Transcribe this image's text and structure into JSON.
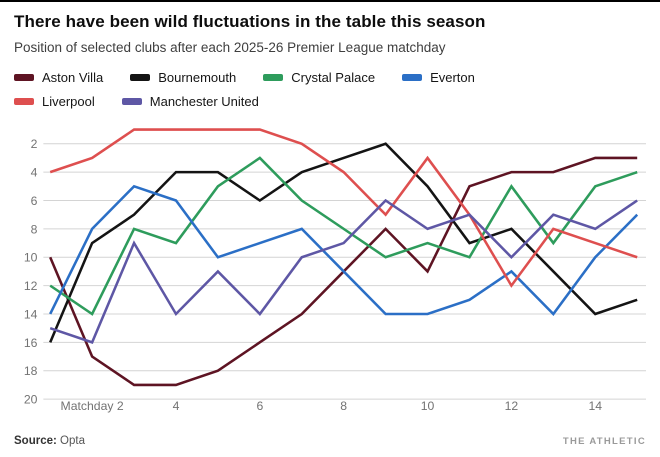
{
  "footer": {
    "source_label": "Source:",
    "source_value": "Opta",
    "brand": "THE ATHLETIC"
  },
  "chart_data": {
    "type": "line",
    "title": "There have been wild fluctuations in the table this season",
    "subtitle": "Position of selected clubs after each 2025-26 Premier League matchday",
    "x": [
      1,
      2,
      3,
      4,
      5,
      6,
      7,
      8,
      9,
      10,
      11,
      12,
      13,
      14,
      15
    ],
    "x_ticks": [
      {
        "value": 2,
        "label": "Matchday 2"
      },
      {
        "value": 4,
        "label": "4"
      },
      {
        "value": 6,
        "label": "6"
      },
      {
        "value": 8,
        "label": "8"
      },
      {
        "value": 10,
        "label": "10"
      },
      {
        "value": 12,
        "label": "12"
      },
      {
        "value": 14,
        "label": "14"
      }
    ],
    "y_ticks": [
      2,
      4,
      6,
      8,
      10,
      12,
      14,
      16,
      18,
      20
    ],
    "y_axis_inverted": true,
    "ylim": [
      1,
      20
    ],
    "grid": "horizontal-only",
    "legend_position": "top",
    "series": [
      {
        "name": "Aston Villa",
        "color": "#5e1423",
        "values": [
          10,
          17,
          19,
          19,
          18,
          16,
          14,
          11,
          8,
          11,
          5,
          4,
          4,
          3,
          3
        ]
      },
      {
        "name": "Bournemouth",
        "color": "#141414",
        "values": [
          16,
          9,
          7,
          4,
          4,
          6,
          4,
          3,
          2,
          5,
          9,
          8,
          11,
          14,
          13
        ]
      },
      {
        "name": "Crystal Palace",
        "color": "#2e9c5c",
        "values": [
          12,
          14,
          8,
          9,
          5,
          3,
          6,
          8,
          10,
          9,
          10,
          5,
          9,
          5,
          4
        ]
      },
      {
        "name": "Everton",
        "color": "#2b6fc6",
        "values": [
          14,
          8,
          5,
          6,
          10,
          9,
          8,
          11,
          14,
          14,
          13,
          11,
          14,
          10,
          7
        ]
      },
      {
        "name": "Liverpool",
        "color": "#de4f4f",
        "values": [
          4,
          3,
          1,
          1,
          1,
          1,
          2,
          4,
          7,
          3,
          7,
          12,
          8,
          9,
          10
        ]
      },
      {
        "name": "Manchester United",
        "color": "#5e57a5",
        "values": [
          15,
          16,
          9,
          14,
          11,
          14,
          10,
          9,
          6,
          8,
          7,
          10,
          7,
          8,
          6
        ]
      }
    ]
  }
}
